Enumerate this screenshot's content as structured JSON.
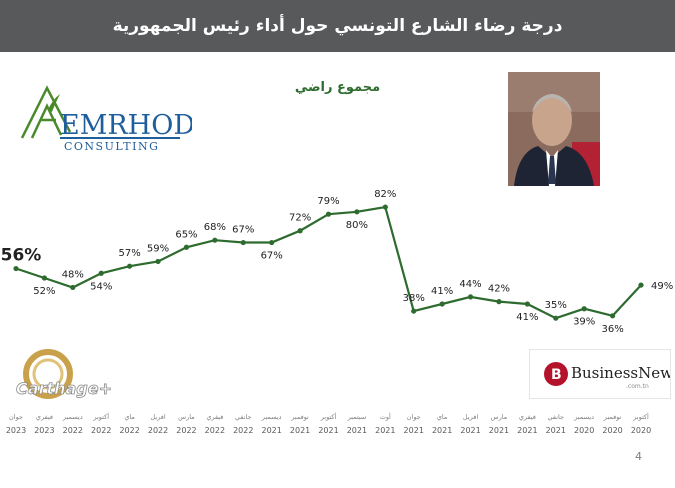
{
  "header": {
    "title": "درجة رضاء الشارع التونسي حول أداء رئيس الجمهورية"
  },
  "chart_data": {
    "type": "line",
    "title": "مجموع راضي",
    "categories": [
      {
        "month": "جوان",
        "year": "2023"
      },
      {
        "month": "فيفري",
        "year": "2023"
      },
      {
        "month": "ديسمبر",
        "year": "2022"
      },
      {
        "month": "أكتوبر",
        "year": "2022"
      },
      {
        "month": "ماي",
        "year": "2022"
      },
      {
        "month": "افريل",
        "year": "2022"
      },
      {
        "month": "مارس",
        "year": "2022"
      },
      {
        "month": "فيفري",
        "year": "2022"
      },
      {
        "month": "جانفي",
        "year": "2022"
      },
      {
        "month": "ديسمبر",
        "year": "2021"
      },
      {
        "month": "نوفمبر",
        "year": "2021"
      },
      {
        "month": "أكتوبر",
        "year": "2021"
      },
      {
        "month": "سبتمبر",
        "year": "2021"
      },
      {
        "month": "أوت",
        "year": "2021"
      },
      {
        "month": "جوان",
        "year": "2021"
      },
      {
        "month": "ماي",
        "year": "2021"
      },
      {
        "month": "افريل",
        "year": "2021"
      },
      {
        "month": "مارس",
        "year": "2021"
      },
      {
        "month": "فيفري",
        "year": "2021"
      },
      {
        "month": "جانفي",
        "year": "2021"
      },
      {
        "month": "ديسمبر",
        "year": "2020"
      },
      {
        "month": "نوفمبر",
        "year": "2020"
      },
      {
        "month": "أكتوبر",
        "year": "2020"
      }
    ],
    "series": [
      {
        "values": [
          56,
          52,
          48,
          54,
          57,
          59,
          65,
          68,
          67,
          67,
          72,
          79,
          80,
          82,
          38,
          41,
          44,
          42,
          41,
          35,
          39,
          36,
          49
        ]
      }
    ],
    "data_labels": [
      "56%",
      "52%",
      "48%",
      "54%",
      "57%",
      "59%",
      "65%",
      "68%",
      "67%",
      "67%",
      "72%",
      "79%",
      "80%",
      "82%",
      "38%",
      "41%",
      "44%",
      "42%",
      "41%",
      "35%",
      "39%",
      "36%",
      "49%"
    ],
    "label_position": [
      "left",
      "below",
      "above",
      "below",
      "above",
      "above",
      "above",
      "above",
      "above",
      "below",
      "above",
      "above",
      "below",
      "above",
      "above",
      "above",
      "above",
      "above",
      "below",
      "above",
      "below",
      "below",
      "right"
    ],
    "highlight_first": true,
    "line_color": "#2e6b2e",
    "marker_color": "#2e6b2e",
    "ylim": [
      0,
      100
    ],
    "grid": false,
    "legend": "none"
  },
  "logos": {
    "emrhod": {
      "name": "EMRHOD",
      "tagline": "CONSULTING",
      "color": "#1f5e9c",
      "mark_color": "#4a8a2a"
    },
    "carthage": {
      "name": "Carthage+",
      "color": "#c9a14a"
    },
    "businessnews": {
      "name": "BusinessNews",
      "domain": ".com.tn",
      "mark": "B",
      "color": "#b5122b"
    }
  },
  "photo": {
    "icon": "portrait-photo"
  },
  "footer": {
    "page_number": "4"
  }
}
